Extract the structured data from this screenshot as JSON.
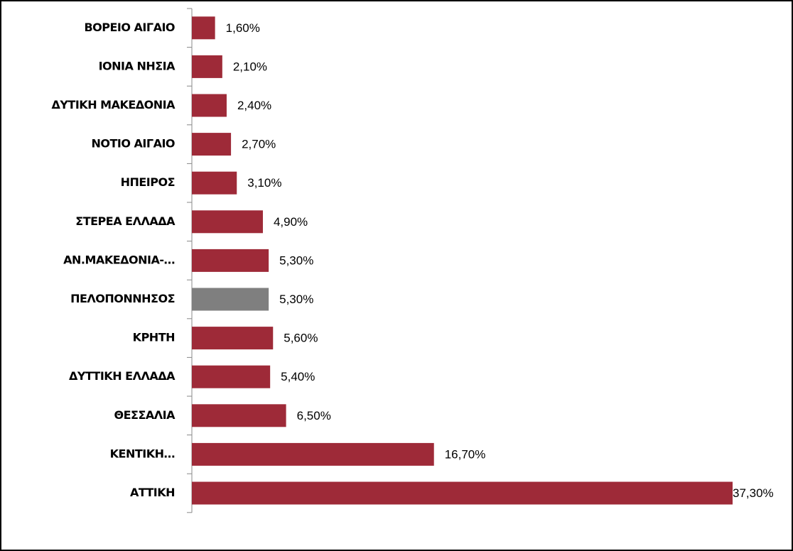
{
  "chart_data": {
    "type": "barh",
    "categories": [
      "ΒΟΡΕΙΟ ΑΙΓΑΙΟ",
      "ΙΟΝΙΑ ΝΗΣΙΑ",
      "ΔΥΤΙΚΗ ΜΑΚΕΔΟΝΙΑ",
      "ΝΟΤΙΟ ΑΙΓΑΙΟ",
      "ΗΠΕΙΡΟΣ",
      "ΣΤΕΡΕΑ ΕΛΛΑΔΑ",
      "ΑΝ.ΜΑΚΕΔΟΝΙΑ-…",
      "ΠΕΛΟΠΟΝΝΗΣΟΣ",
      "ΚΡΗΤΗ",
      "ΔΥΤΤΙΚΗ ΕΛΛΑΔΑ",
      "ΘΕΣΣΑΛΙΑ",
      "ΚΕΝΤΙΚΗ…",
      "ΑΤΤΙΚΗ"
    ],
    "values": [
      1.6,
      2.1,
      2.4,
      2.7,
      3.1,
      4.9,
      5.3,
      5.3,
      5.6,
      5.4,
      6.5,
      16.7,
      37.3
    ],
    "value_labels": [
      "1,60%",
      "2,10%",
      "2,40%",
      "2,70%",
      "3,10%",
      "4,90%",
      "5,30%",
      "5,30%",
      "5,60%",
      "5,40%",
      "6,50%",
      "16,70%",
      "37,30%"
    ],
    "colors": [
      "#9e2a38",
      "#9e2a38",
      "#9e2a38",
      "#9e2a38",
      "#9e2a38",
      "#9e2a38",
      "#9e2a38",
      "#7f7f7f",
      "#9e2a38",
      "#9e2a38",
      "#9e2a38",
      "#9e2a38",
      "#9e2a38"
    ]
  }
}
